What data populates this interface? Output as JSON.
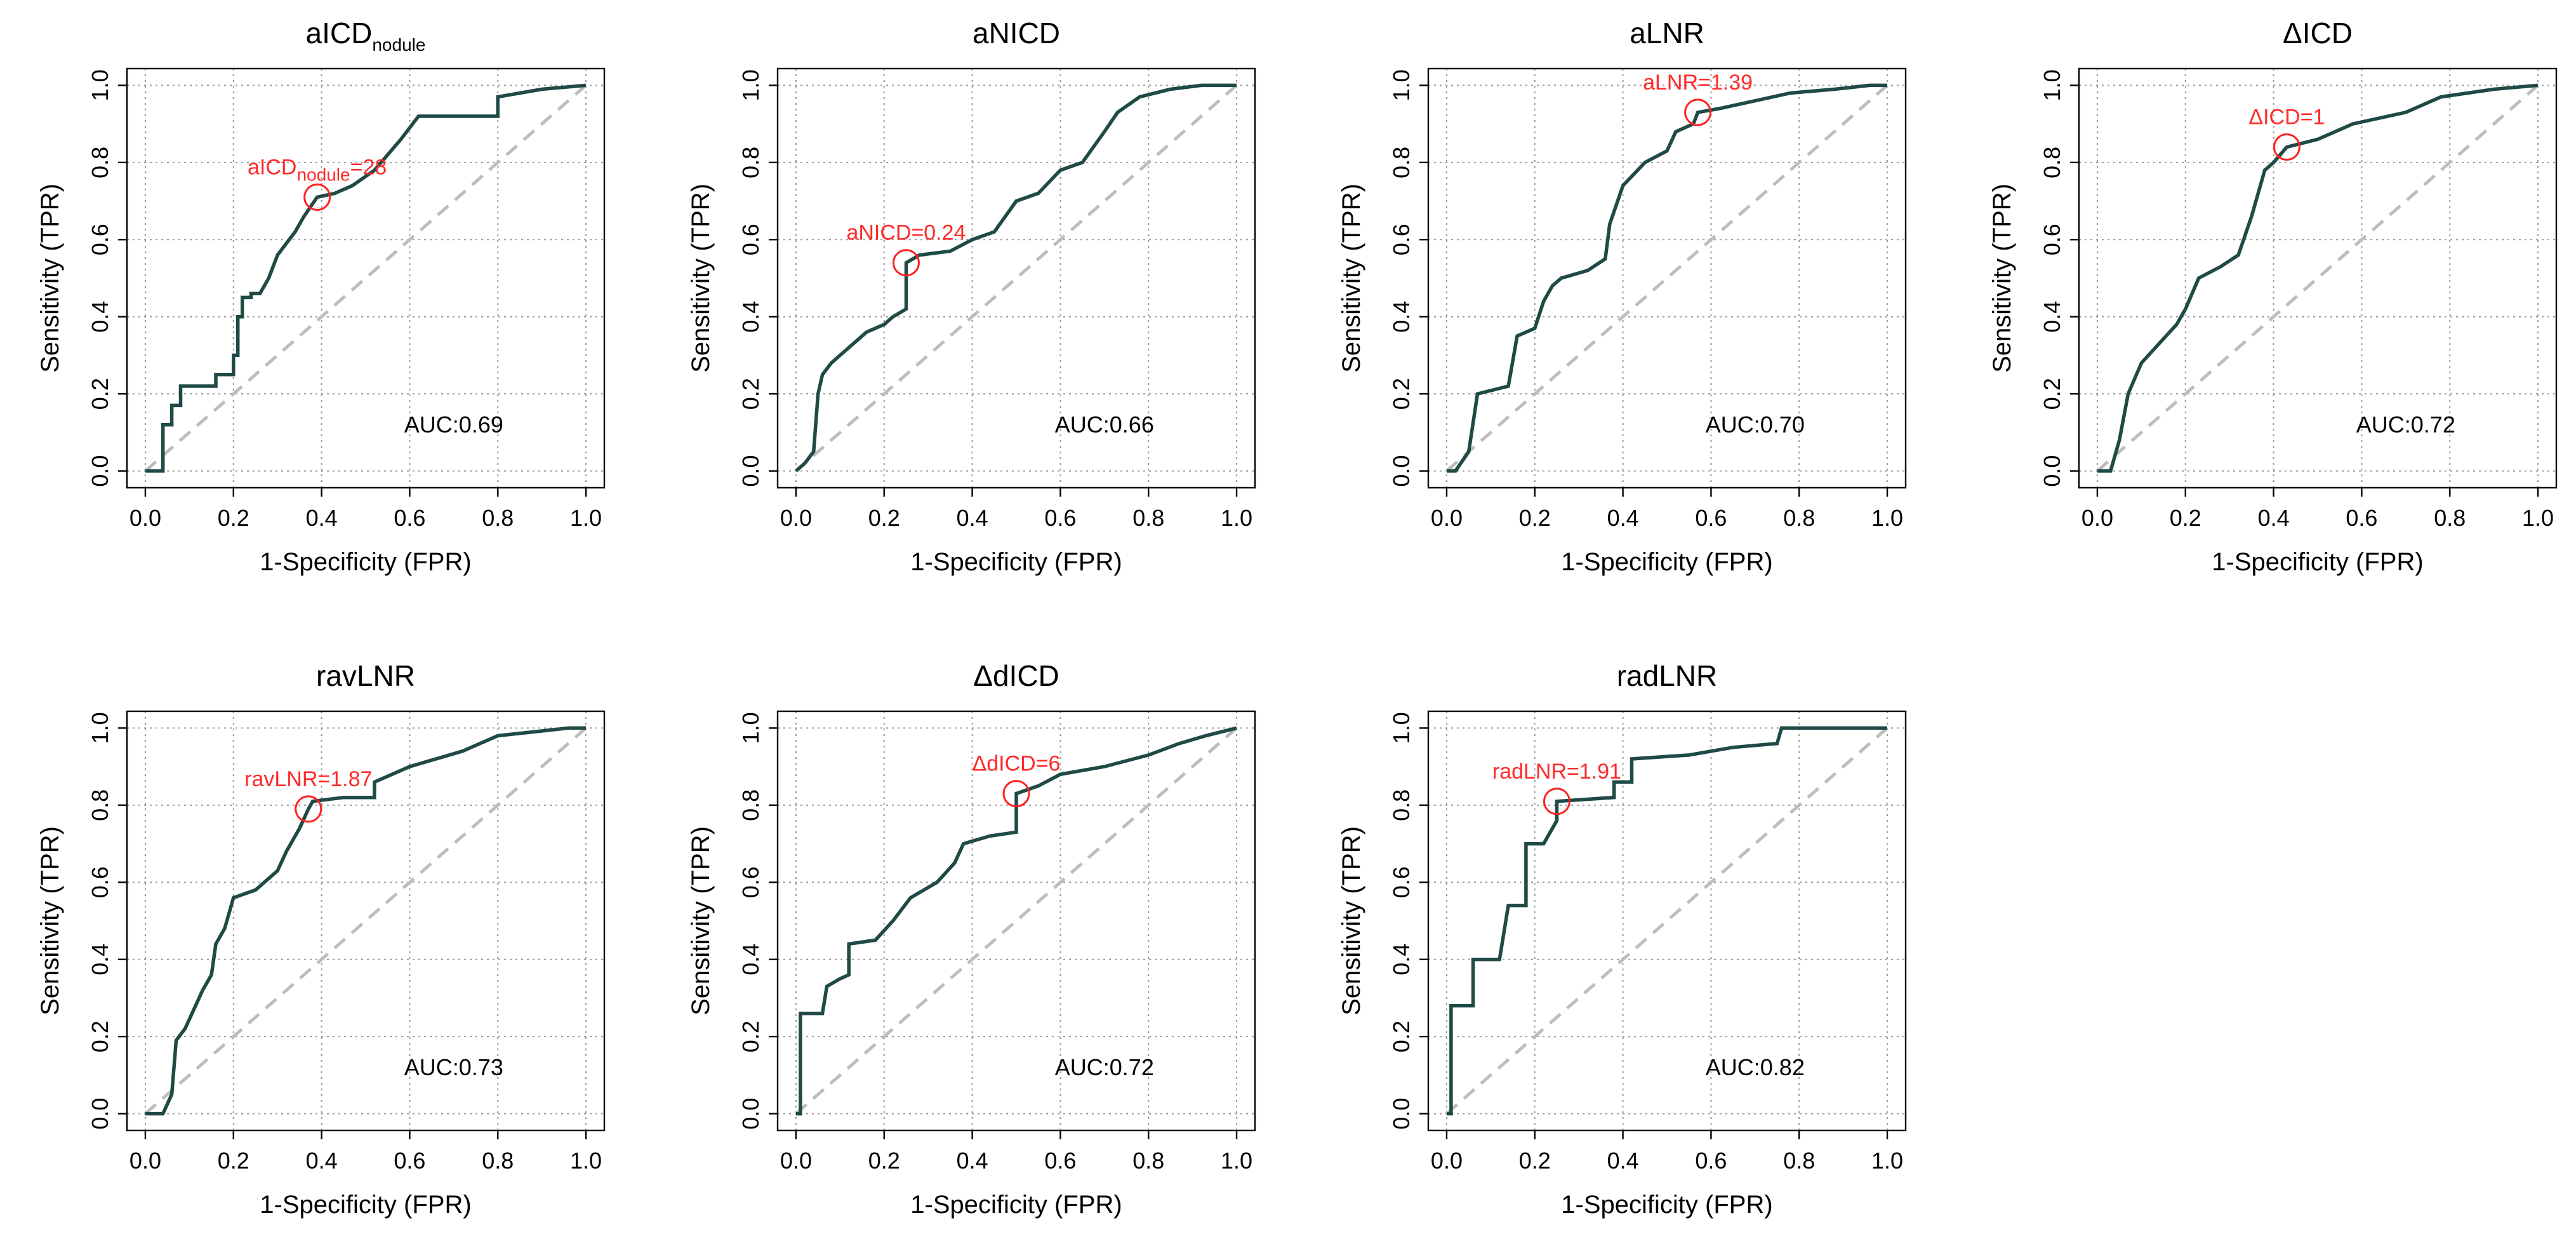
{
  "figure": {
    "x_label": "1-Specificity (FPR)",
    "y_label": "Sensitivity (TPR)"
  },
  "colors": {
    "roc": "#1f4a46",
    "cutoff": "#ff2020",
    "diagonal": "#bdbdbd",
    "grid": "#9a9a9a"
  },
  "chart_data": [
    {
      "type": "line",
      "title": "aICD",
      "title_subscript": "nodule",
      "xlabel": "1-Specificity (FPR)",
      "ylabel": "Sensitivity (TPR)",
      "xlim": [
        0,
        1
      ],
      "ylim": [
        0,
        1
      ],
      "x_ticks": [
        "0.0",
        "0.2",
        "0.4",
        "0.6",
        "0.8",
        "1.0"
      ],
      "y_ticks": [
        "0.0",
        "0.2",
        "0.4",
        "0.6",
        "0.8",
        "1.0"
      ],
      "grid": true,
      "auc_label": "AUC:0.69",
      "cutoff": {
        "label": "aICD",
        "label_subscript": "nodule",
        "label_value": "=28",
        "fpr": 0.39,
        "tpr": 0.71
      },
      "series": [
        {
          "name": "ROC",
          "points": [
            [
              0,
              0
            ],
            [
              0.04,
              0
            ],
            [
              0.04,
              0.12
            ],
            [
              0.06,
              0.12
            ],
            [
              0.06,
              0.17
            ],
            [
              0.08,
              0.17
            ],
            [
              0.08,
              0.22
            ],
            [
              0.16,
              0.22
            ],
            [
              0.16,
              0.25
            ],
            [
              0.2,
              0.25
            ],
            [
              0.2,
              0.3
            ],
            [
              0.21,
              0.3
            ],
            [
              0.21,
              0.4
            ],
            [
              0.22,
              0.4
            ],
            [
              0.22,
              0.45
            ],
            [
              0.24,
              0.45
            ],
            [
              0.24,
              0.46
            ],
            [
              0.26,
              0.46
            ],
            [
              0.28,
              0.5
            ],
            [
              0.3,
              0.56
            ],
            [
              0.34,
              0.62
            ],
            [
              0.36,
              0.66
            ],
            [
              0.39,
              0.71
            ],
            [
              0.43,
              0.72
            ],
            [
              0.47,
              0.74
            ],
            [
              0.52,
              0.78
            ],
            [
              0.58,
              0.86
            ],
            [
              0.62,
              0.92
            ],
            [
              0.8,
              0.92
            ],
            [
              0.8,
              0.97
            ],
            [
              0.9,
              0.99
            ],
            [
              1,
              1
            ]
          ]
        }
      ]
    },
    {
      "type": "line",
      "title": "aNICD",
      "xlabel": "1-Specificity (FPR)",
      "ylabel": "Sensitivity (TPR)",
      "xlim": [
        0,
        1
      ],
      "ylim": [
        0,
        1
      ],
      "x_ticks": [
        "0.0",
        "0.2",
        "0.4",
        "0.6",
        "0.8",
        "1.0"
      ],
      "y_ticks": [
        "0.0",
        "0.2",
        "0.4",
        "0.6",
        "0.8",
        "1.0"
      ],
      "grid": true,
      "auc_label": "AUC:0.66",
      "cutoff": {
        "label": "aNICD=0.24",
        "fpr": 0.25,
        "tpr": 0.54
      },
      "series": [
        {
          "name": "ROC",
          "points": [
            [
              0,
              0
            ],
            [
              0.02,
              0.02
            ],
            [
              0.04,
              0.05
            ],
            [
              0.05,
              0.2
            ],
            [
              0.06,
              0.25
            ],
            [
              0.08,
              0.28
            ],
            [
              0.1,
              0.3
            ],
            [
              0.13,
              0.33
            ],
            [
              0.16,
              0.36
            ],
            [
              0.2,
              0.38
            ],
            [
              0.22,
              0.4
            ],
            [
              0.25,
              0.42
            ],
            [
              0.25,
              0.54
            ],
            [
              0.28,
              0.56
            ],
            [
              0.35,
              0.57
            ],
            [
              0.4,
              0.6
            ],
            [
              0.45,
              0.62
            ],
            [
              0.5,
              0.7
            ],
            [
              0.55,
              0.72
            ],
            [
              0.6,
              0.78
            ],
            [
              0.65,
              0.8
            ],
            [
              0.7,
              0.88
            ],
            [
              0.73,
              0.93
            ],
            [
              0.78,
              0.97
            ],
            [
              0.85,
              0.99
            ],
            [
              0.92,
              1
            ],
            [
              1,
              1
            ]
          ]
        }
      ]
    },
    {
      "type": "line",
      "title": "aLNR",
      "xlabel": "1-Specificity (FPR)",
      "ylabel": "Sensitivity (TPR)",
      "xlim": [
        0,
        1
      ],
      "ylim": [
        0,
        1
      ],
      "x_ticks": [
        "0.0",
        "0.2",
        "0.4",
        "0.6",
        "0.8",
        "1.0"
      ],
      "y_ticks": [
        "0.0",
        "0.2",
        "0.4",
        "0.6",
        "0.8",
        "1.0"
      ],
      "grid": true,
      "auc_label": "AUC:0.70",
      "cutoff": {
        "label": "aLNR=1.39",
        "fpr": 0.57,
        "tpr": 0.93
      },
      "series": [
        {
          "name": "ROC",
          "points": [
            [
              0,
              0
            ],
            [
              0.02,
              0
            ],
            [
              0.05,
              0.05
            ],
            [
              0.07,
              0.2
            ],
            [
              0.14,
              0.22
            ],
            [
              0.16,
              0.35
            ],
            [
              0.2,
              0.37
            ],
            [
              0.22,
              0.44
            ],
            [
              0.24,
              0.48
            ],
            [
              0.26,
              0.5
            ],
            [
              0.32,
              0.52
            ],
            [
              0.36,
              0.55
            ],
            [
              0.37,
              0.64
            ],
            [
              0.4,
              0.74
            ],
            [
              0.45,
              0.8
            ],
            [
              0.5,
              0.83
            ],
            [
              0.52,
              0.88
            ],
            [
              0.56,
              0.9
            ],
            [
              0.57,
              0.93
            ],
            [
              0.62,
              0.94
            ],
            [
              0.7,
              0.96
            ],
            [
              0.78,
              0.98
            ],
            [
              0.88,
              0.99
            ],
            [
              0.96,
              1
            ],
            [
              1,
              1
            ]
          ]
        }
      ]
    },
    {
      "type": "line",
      "title": "ΔICD",
      "xlabel": "1-Specificity (FPR)",
      "ylabel": "Sensitivity (TPR)",
      "xlim": [
        0,
        1
      ],
      "ylim": [
        0,
        1
      ],
      "x_ticks": [
        "0.0",
        "0.2",
        "0.4",
        "0.6",
        "0.8",
        "1.0"
      ],
      "y_ticks": [
        "0.0",
        "0.2",
        "0.4",
        "0.6",
        "0.8",
        "1.0"
      ],
      "grid": true,
      "auc_label": "AUC:0.72",
      "cutoff": {
        "label": "ΔICD=1",
        "fpr": 0.43,
        "tpr": 0.84
      },
      "series": [
        {
          "name": "ROC",
          "points": [
            [
              0,
              0
            ],
            [
              0.03,
              0
            ],
            [
              0.05,
              0.08
            ],
            [
              0.07,
              0.2
            ],
            [
              0.1,
              0.28
            ],
            [
              0.14,
              0.33
            ],
            [
              0.18,
              0.38
            ],
            [
              0.2,
              0.42
            ],
            [
              0.23,
              0.5
            ],
            [
              0.28,
              0.53
            ],
            [
              0.32,
              0.56
            ],
            [
              0.35,
              0.66
            ],
            [
              0.38,
              0.78
            ],
            [
              0.4,
              0.8
            ],
            [
              0.43,
              0.84
            ],
            [
              0.5,
              0.86
            ],
            [
              0.58,
              0.9
            ],
            [
              0.7,
              0.93
            ],
            [
              0.78,
              0.97
            ],
            [
              0.9,
              0.99
            ],
            [
              1,
              1
            ]
          ]
        }
      ]
    },
    {
      "type": "line",
      "title": "ravLNR",
      "xlabel": "1-Specificity (FPR)",
      "ylabel": "Sensitivity (TPR)",
      "xlim": [
        0,
        1
      ],
      "ylim": [
        0,
        1
      ],
      "x_ticks": [
        "0.0",
        "0.2",
        "0.4",
        "0.6",
        "0.8",
        "1.0"
      ],
      "y_ticks": [
        "0.0",
        "0.2",
        "0.4",
        "0.6",
        "0.8",
        "1.0"
      ],
      "grid": true,
      "auc_label": "AUC:0.73",
      "cutoff": {
        "label": "ravLNR=1.87",
        "fpr": 0.37,
        "tpr": 0.79
      },
      "series": [
        {
          "name": "ROC",
          "points": [
            [
              0,
              0
            ],
            [
              0.04,
              0
            ],
            [
              0.06,
              0.05
            ],
            [
              0.07,
              0.19
            ],
            [
              0.09,
              0.22
            ],
            [
              0.11,
              0.27
            ],
            [
              0.13,
              0.32
            ],
            [
              0.15,
              0.36
            ],
            [
              0.16,
              0.44
            ],
            [
              0.18,
              0.48
            ],
            [
              0.2,
              0.56
            ],
            [
              0.25,
              0.58
            ],
            [
              0.3,
              0.63
            ],
            [
              0.32,
              0.68
            ],
            [
              0.35,
              0.74
            ],
            [
              0.37,
              0.79
            ],
            [
              0.38,
              0.81
            ],
            [
              0.45,
              0.82
            ],
            [
              0.52,
              0.82
            ],
            [
              0.52,
              0.86
            ],
            [
              0.6,
              0.9
            ],
            [
              0.72,
              0.94
            ],
            [
              0.8,
              0.98
            ],
            [
              0.88,
              0.99
            ],
            [
              0.96,
              1
            ],
            [
              1,
              1
            ]
          ]
        }
      ]
    },
    {
      "type": "line",
      "title": "ΔdICD",
      "xlabel": "1-Specificity (FPR)",
      "ylabel": "Sensitivity (TPR)",
      "xlim": [
        0,
        1
      ],
      "ylim": [
        0,
        1
      ],
      "x_ticks": [
        "0.0",
        "0.2",
        "0.4",
        "0.6",
        "0.8",
        "1.0"
      ],
      "y_ticks": [
        "0.0",
        "0.2",
        "0.4",
        "0.6",
        "0.8",
        "1.0"
      ],
      "grid": true,
      "auc_label": "AUC:0.72",
      "cutoff": {
        "label": "ΔdICD=6",
        "fpr": 0.5,
        "tpr": 0.83
      },
      "series": [
        {
          "name": "ROC",
          "points": [
            [
              0,
              0
            ],
            [
              0.01,
              0
            ],
            [
              0.01,
              0.26
            ],
            [
              0.06,
              0.26
            ],
            [
              0.07,
              0.33
            ],
            [
              0.1,
              0.35
            ],
            [
              0.12,
              0.36
            ],
            [
              0.12,
              0.44
            ],
            [
              0.18,
              0.45
            ],
            [
              0.22,
              0.5
            ],
            [
              0.26,
              0.56
            ],
            [
              0.32,
              0.6
            ],
            [
              0.36,
              0.65
            ],
            [
              0.38,
              0.7
            ],
            [
              0.44,
              0.72
            ],
            [
              0.5,
              0.73
            ],
            [
              0.5,
              0.83
            ],
            [
              0.55,
              0.85
            ],
            [
              0.6,
              0.88
            ],
            [
              0.7,
              0.9
            ],
            [
              0.8,
              0.93
            ],
            [
              0.87,
              0.96
            ],
            [
              0.93,
              0.98
            ],
            [
              1,
              1
            ]
          ]
        }
      ]
    },
    {
      "type": "line",
      "title": "radLNR",
      "xlabel": "1-Specificity (FPR)",
      "ylabel": "Sensitivity (TPR)",
      "xlim": [
        0,
        1
      ],
      "ylim": [
        0,
        1
      ],
      "x_ticks": [
        "0.0",
        "0.2",
        "0.4",
        "0.6",
        "0.8",
        "1.0"
      ],
      "y_ticks": [
        "0.0",
        "0.2",
        "0.4",
        "0.6",
        "0.8",
        "1.0"
      ],
      "grid": true,
      "auc_label": "AUC:0.82",
      "cutoff": {
        "label": "radLNR=1.91",
        "fpr": 0.25,
        "tpr": 0.81
      },
      "series": [
        {
          "name": "ROC",
          "points": [
            [
              0,
              0
            ],
            [
              0.01,
              0
            ],
            [
              0.01,
              0.28
            ],
            [
              0.06,
              0.28
            ],
            [
              0.06,
              0.4
            ],
            [
              0.12,
              0.4
            ],
            [
              0.14,
              0.54
            ],
            [
              0.18,
              0.54
            ],
            [
              0.18,
              0.7
            ],
            [
              0.22,
              0.7
            ],
            [
              0.25,
              0.76
            ],
            [
              0.25,
              0.81
            ],
            [
              0.38,
              0.82
            ],
            [
              0.38,
              0.86
            ],
            [
              0.42,
              0.86
            ],
            [
              0.42,
              0.92
            ],
            [
              0.55,
              0.93
            ],
            [
              0.65,
              0.95
            ],
            [
              0.75,
              0.96
            ],
            [
              0.76,
              1
            ],
            [
              1,
              1
            ]
          ]
        }
      ]
    }
  ]
}
